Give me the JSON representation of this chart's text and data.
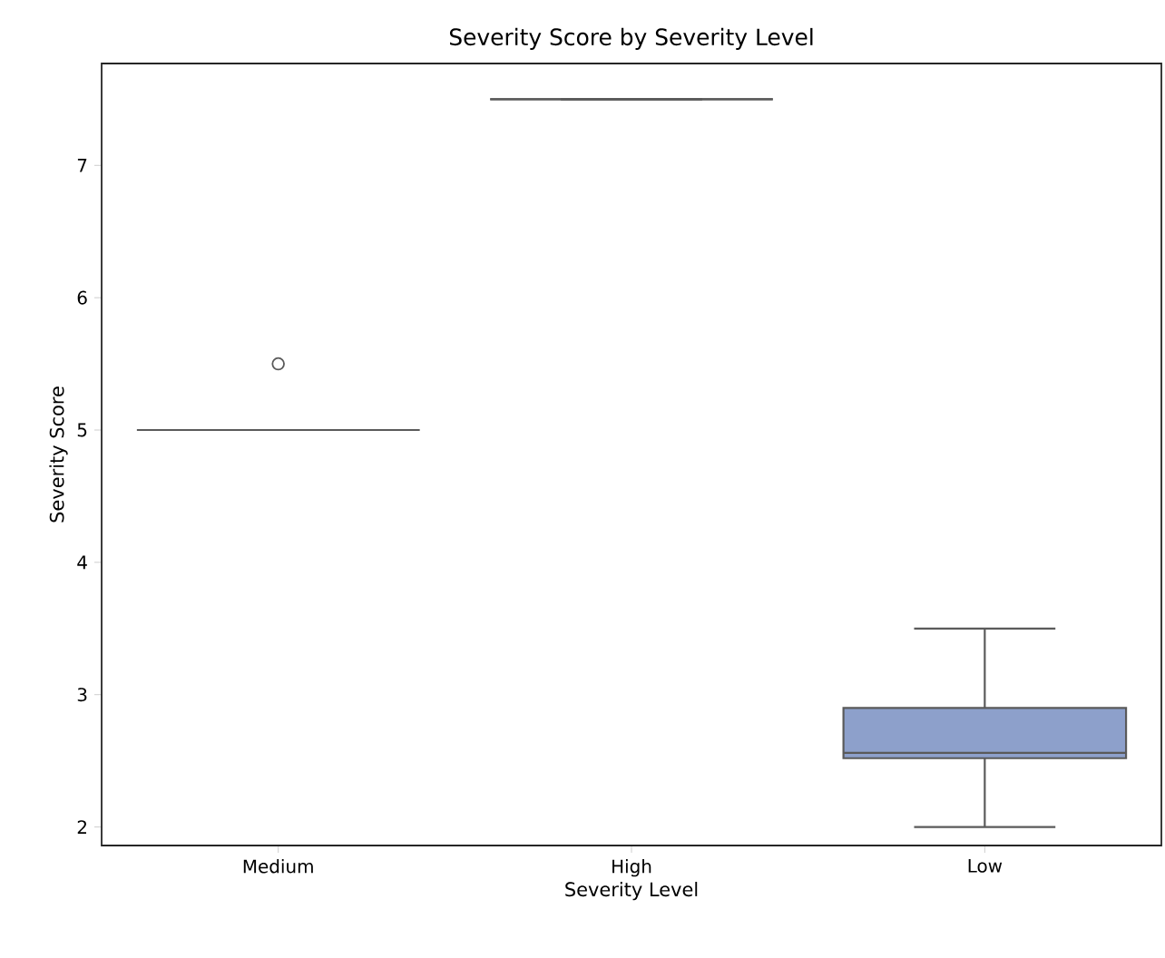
{
  "chart_data": {
    "type": "box",
    "title": "Severity Score by Severity Level",
    "xlabel": "Severity Level",
    "ylabel": "Severity Score",
    "categories": [
      "Medium",
      "High",
      "Low"
    ],
    "boxes": [
      {
        "low": 5,
        "q1": 5,
        "median": 5,
        "q3": 5,
        "high": 5,
        "outliers": [
          5.5
        ]
      },
      {
        "low": 7.5,
        "q1": 7.5,
        "median": 7.5,
        "q3": 7.5,
        "high": 7.5
      },
      {
        "low": 2.0,
        "q1": 2.52,
        "median": 2.56,
        "q3": 2.9,
        "high": 3.5
      }
    ],
    "colors": [
      "#5a5a5a",
      "#5a5a5a",
      "#8da0cb"
    ],
    "ylim": [
      1.86,
      7.77
    ],
    "yticks": [
      2,
      3,
      4,
      5,
      6,
      7
    ],
    "grid": false
  }
}
